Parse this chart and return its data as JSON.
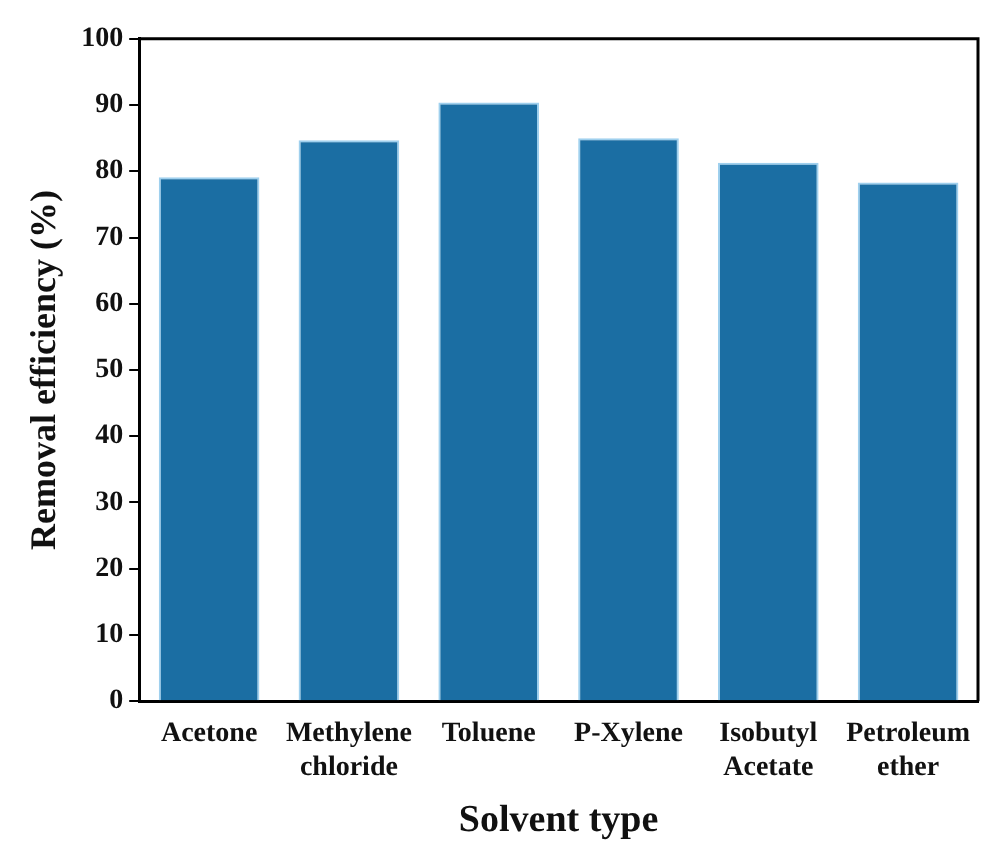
{
  "chart_data": {
    "type": "bar",
    "xlabel": "Solvent type",
    "ylabel": "Removal efficiency (%)",
    "categories": [
      "Acetone",
      "Methylene chloride",
      "Toluene",
      "P-Xylene",
      "Isobutyl Acetate",
      "Petroleum ether"
    ],
    "values": [
      79.1,
      84.7,
      90.4,
      85.0,
      81.3,
      78.3
    ],
    "color": "#1b6ea3",
    "ylim": [
      0,
      100
    ],
    "yticks": [
      0,
      10,
      20,
      30,
      40,
      50,
      60,
      70,
      80,
      90,
      100
    ],
    "grid": false,
    "legend": false
  }
}
